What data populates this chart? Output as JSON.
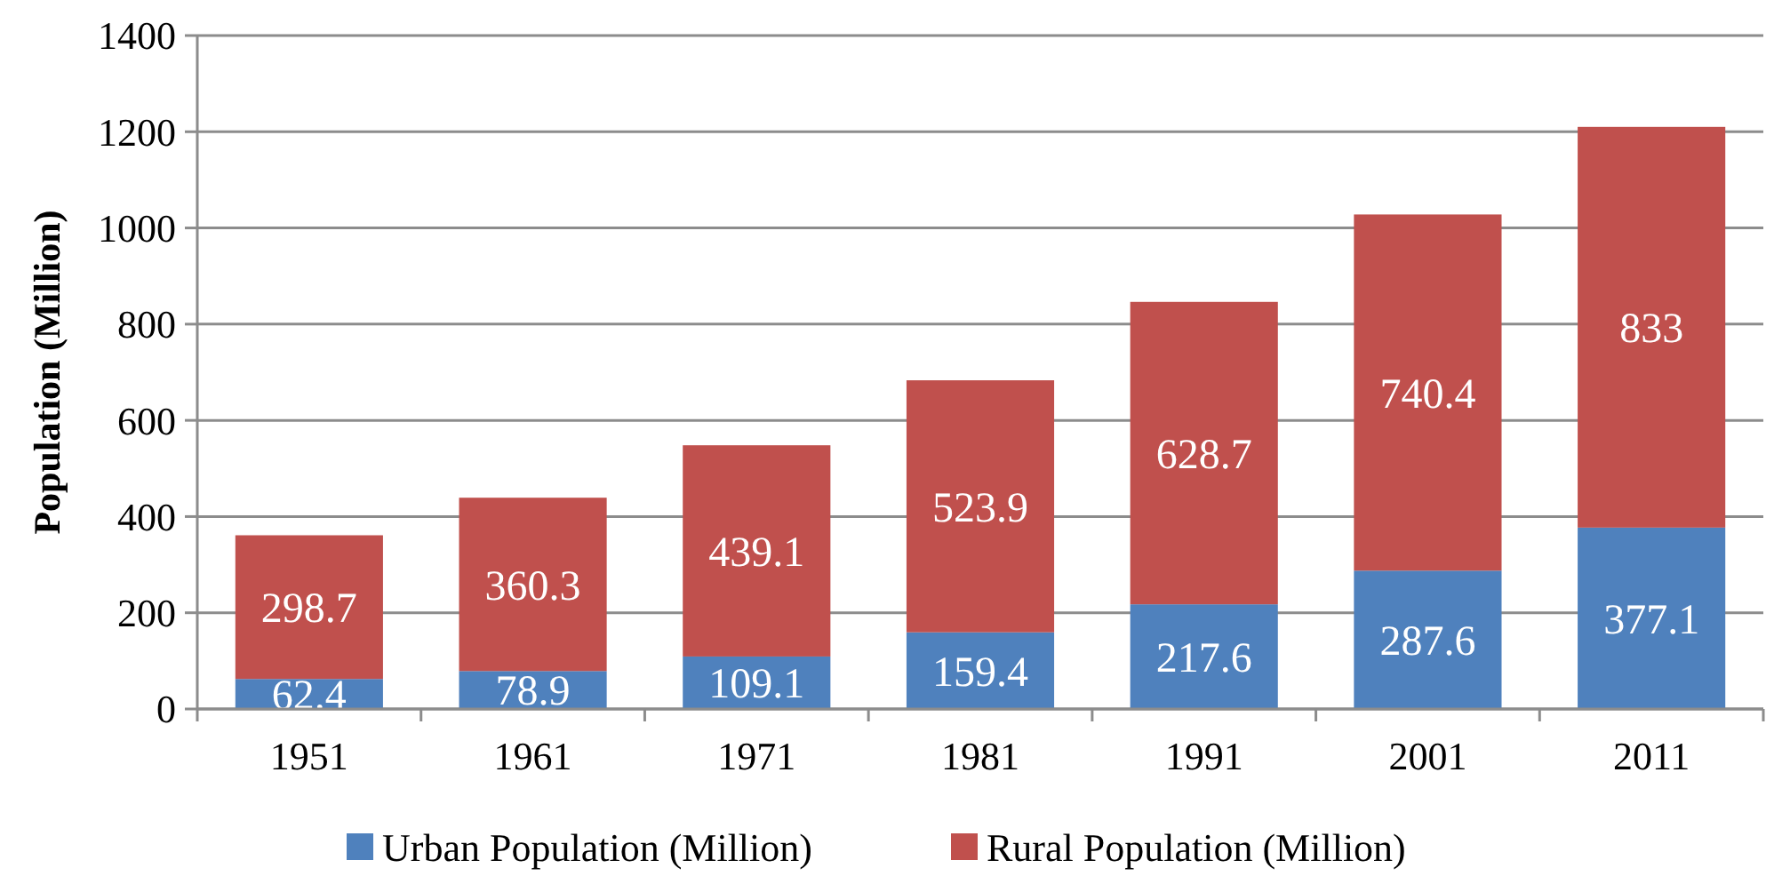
{
  "chart_data": {
    "type": "bar",
    "stacked": true,
    "ylabel": "Population (Million)",
    "categories": [
      "1951",
      "1961",
      "1971",
      "1981",
      "1991",
      "2001",
      "2011"
    ],
    "series": [
      {
        "name": "Urban Population (Million)",
        "color": "#4f81bd",
        "values": [
          62.4,
          78.9,
          109.1,
          159.4,
          217.6,
          287.6,
          377.1
        ]
      },
      {
        "name": "Rural Population (Million)",
        "color": "#c0504d",
        "values": [
          298.7,
          360.3,
          439.1,
          523.9,
          628.7,
          740.4,
          833
        ]
      }
    ],
    "ylim": [
      0,
      1400
    ],
    "yticks": [
      0,
      200,
      400,
      600,
      800,
      1000,
      1200,
      1400
    ],
    "grid": "y",
    "legend": "bottom",
    "data_labels": true
  }
}
